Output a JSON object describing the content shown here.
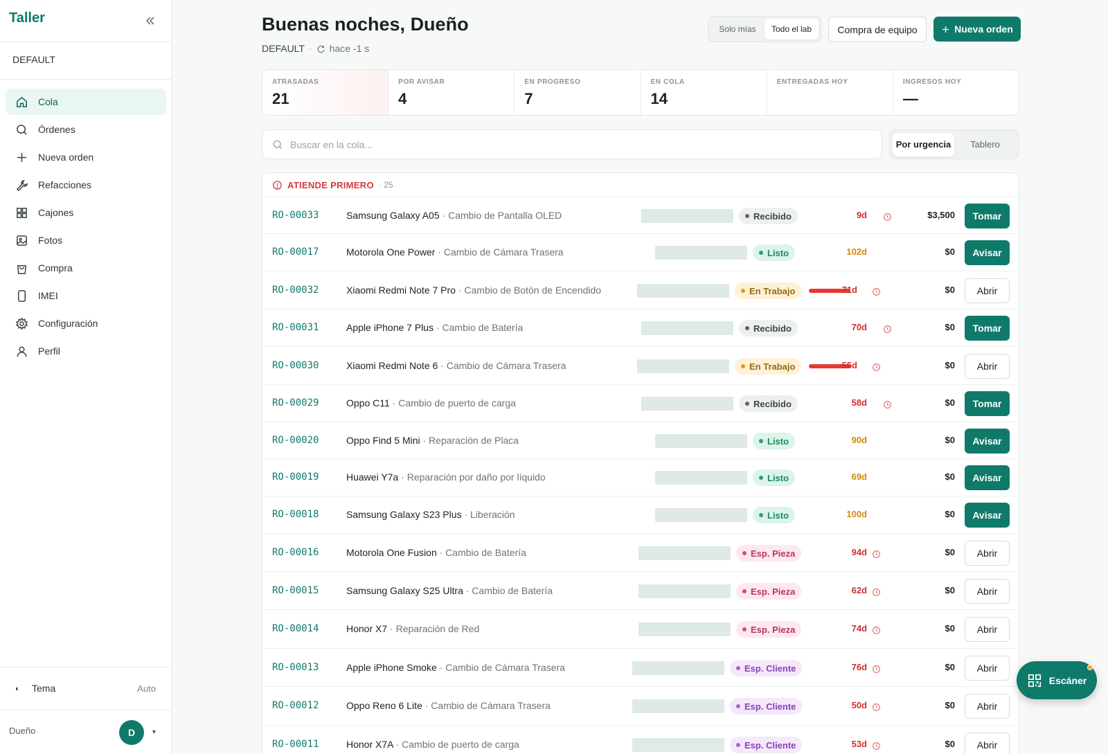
{
  "sidebar": {
    "brand": "Taller",
    "workspace": "DEFAULT",
    "items": [
      {
        "label": "Cola",
        "icon": "home-icon"
      },
      {
        "label": "Órdenes",
        "icon": "search-icon"
      },
      {
        "label": "Nueva orden",
        "icon": "plus-icon"
      },
      {
        "label": "Refacciones",
        "icon": "wrench-icon"
      },
      {
        "label": "Cajones",
        "icon": "grid-icon"
      },
      {
        "label": "Fotos",
        "icon": "image-icon"
      },
      {
        "label": "Compra",
        "icon": "bag-icon"
      },
      {
        "label": "IMEI",
        "icon": "phone-icon"
      },
      {
        "label": "Configuración",
        "icon": "gear-icon"
      },
      {
        "label": "Perfil",
        "icon": "user-icon"
      }
    ],
    "theme_label": "Tema",
    "theme_value": "Auto",
    "user_name": "Dueño",
    "avatar_initial": "D"
  },
  "header": {
    "greeting": "Buenas noches, Dueño",
    "workspace": "DEFAULT",
    "separator": "·",
    "refreshed": "hace -1 s",
    "scope_options": [
      "Solo mías",
      "Todo el lab"
    ],
    "scope_selected": "Todo el lab",
    "purchase_button": "Compra de equipo",
    "new_order_button": "Nueva orden"
  },
  "stats": [
    {
      "label": "ATRASADAS",
      "value": "21"
    },
    {
      "label": "POR AVISAR",
      "value": "4"
    },
    {
      "label": "EN PROGRESO",
      "value": "7"
    },
    {
      "label": "EN COLA",
      "value": "14"
    },
    {
      "label": "ENTREGADAS HOY",
      "value": ""
    },
    {
      "label": "INGRESOS HOY",
      "value": "—"
    }
  ],
  "search": {
    "placeholder": "Buscar en la cola..."
  },
  "view": {
    "options": [
      "Por urgencia",
      "Tablero"
    ],
    "selected": "Por urgencia"
  },
  "queue": {
    "title": "ATIENDE PRIMERO",
    "count": "· 25",
    "rows": [
      {
        "id": "RO-00033",
        "device": "Samsung Galaxy A05",
        "service": "· Cambio de Pantalla OLED",
        "status": "Recibido",
        "age": "9d",
        "amount": "$3,500",
        "action": "Tomar"
      },
      {
        "id": "RO-00017",
        "device": "Motorola One Power",
        "service": "· Cambio de Cámara Trasera",
        "status": "Listo",
        "age": "102d",
        "amount": "$0",
        "action": "Avisar"
      },
      {
        "id": "RO-00032",
        "device": "Xiaomi Redmi Note 7 Pro",
        "service": "· Cambio de Botón de Encendido",
        "status": "En Trabajo",
        "age": "71d",
        "amount": "$0",
        "action": "Abrir"
      },
      {
        "id": "RO-00031",
        "device": "Apple iPhone 7 Plus",
        "service": "· Cambio de Batería",
        "status": "Recibido",
        "age": "70d",
        "amount": "$0",
        "action": "Tomar"
      },
      {
        "id": "RO-00030",
        "device": "Xiaomi Redmi Note 6",
        "service": "· Cambio de Cámara Trasera",
        "status": "En Trabajo",
        "age": "55d",
        "amount": "$0",
        "action": "Abrir"
      },
      {
        "id": "RO-00029",
        "device": "Oppo C11",
        "service": "· Cambio de puerto de carga",
        "status": "Recibido",
        "age": "58d",
        "amount": "$0",
        "action": "Tomar"
      },
      {
        "id": "RO-00020",
        "device": "Oppo Find 5 Mini",
        "service": "· Reparación de Placa",
        "status": "Listo",
        "age": "90d",
        "amount": "$0",
        "action": "Avisar"
      },
      {
        "id": "RO-00019",
        "device": "Huawei Y7a",
        "service": "· Reparación por daño por líquido",
        "status": "Listo",
        "age": "69d",
        "amount": "$0",
        "action": "Avisar"
      },
      {
        "id": "RO-00018",
        "device": "Samsung Galaxy S23 Plus",
        "service": "· Liberación",
        "status": "Listo",
        "age": "100d",
        "amount": "$0",
        "action": "Avisar"
      },
      {
        "id": "RO-00016",
        "device": "Motorola One Fusion",
        "service": "· Cambio de Batería",
        "status": "Esp. Pieza",
        "age": "94d",
        "amount": "$0",
        "action": "Abrir"
      },
      {
        "id": "RO-00015",
        "device": "Samsung Galaxy S25 Ultra",
        "service": "· Cambio de Batería",
        "status": "Esp. Pieza",
        "age": "62d",
        "amount": "$0",
        "action": "Abrir"
      },
      {
        "id": "RO-00014",
        "device": "Honor X7",
        "service": "· Reparación de Red",
        "status": "Esp. Pieza",
        "age": "74d",
        "amount": "$0",
        "action": "Abrir"
      },
      {
        "id": "RO-00013",
        "device": "Apple iPhone Smoke",
        "service": "· Cambio de Cámara Trasera",
        "status": "Esp. Cliente",
        "age": "76d",
        "amount": "$0",
        "action": "Abrir"
      },
      {
        "id": "RO-00012",
        "device": "Oppo Reno 6 Lite",
        "service": "· Cambio de Cámara Trasera",
        "status": "Esp. Cliente",
        "age": "50d",
        "amount": "$0",
        "action": "Abrir"
      },
      {
        "id": "RO-00011",
        "device": "Honor X7A",
        "service": "· Cambio de puerto de carga",
        "status": "Esp. Cliente",
        "age": "53d",
        "amount": "$0",
        "action": "Abrir"
      }
    ]
  },
  "fab": {
    "label": "Escáner"
  },
  "colors": {
    "brand": "#0f7a6a",
    "danger": "#d32f2f",
    "amber": "#d18a0a"
  }
}
